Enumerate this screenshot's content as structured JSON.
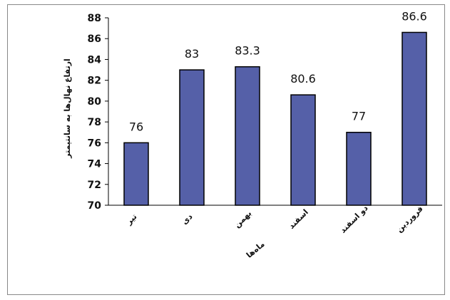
{
  "chart_data": {
    "type": "bar",
    "categories": [
      "تیر",
      "دی",
      "بهمن",
      "اسفند",
      "دو اسفند",
      "فروردین"
    ],
    "values": [
      76,
      83,
      83.3,
      80.6,
      77,
      86.6
    ],
    "data_labels": [
      "76",
      "83",
      "83.3",
      "80.6",
      "77",
      "86.6"
    ],
    "ylim": [
      70,
      88
    ],
    "yticks": [
      70,
      72,
      74,
      76,
      78,
      80,
      82,
      84,
      86,
      88
    ],
    "xlabel": "ماه‌ها",
    "ylabel": "ارتفاع نهال‌ها به سانتیمتر",
    "grid": false,
    "legend": "none",
    "bar_color": "#5560a8"
  }
}
